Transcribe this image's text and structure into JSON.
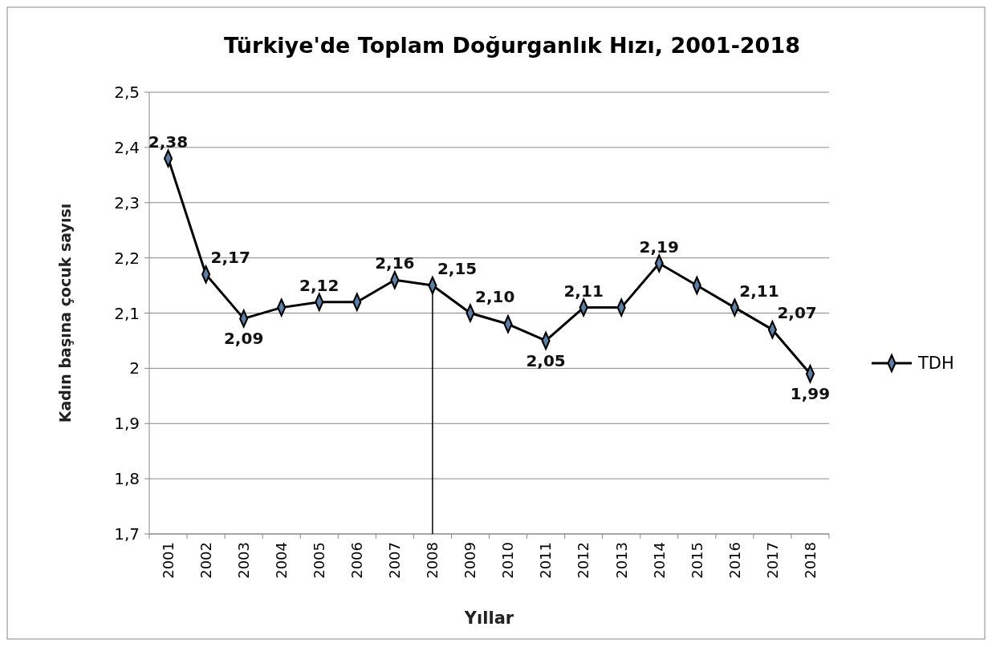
{
  "chart_data": {
    "type": "line",
    "title": "Türkiye'de Toplam Doğurganlık Hızı, 2001-2018",
    "xlabel": "Yıllar",
    "ylabel": "Kadın başına çocuk sayısı",
    "categories": [
      "2001",
      "2002",
      "2003",
      "2004",
      "2005",
      "2006",
      "2007",
      "2008",
      "2009",
      "2010",
      "2011",
      "2012",
      "2013",
      "2014",
      "2015",
      "2016",
      "2017",
      "2018"
    ],
    "series": [
      {
        "name": "TDH",
        "color": "#000000",
        "values": [
          2.38,
          2.17,
          2.09,
          2.11,
          2.12,
          2.12,
          2.16,
          2.15,
          2.1,
          2.08,
          2.05,
          2.11,
          2.11,
          2.19,
          2.15,
          2.11,
          2.07,
          1.99
        ],
        "value_labels": [
          "2,38",
          "2,17",
          "2,09",
          null,
          "2,12",
          null,
          "2,16",
          "2,15",
          "2,10",
          null,
          "2,05",
          "2,11",
          null,
          "2,19",
          null,
          "2,11",
          "2,07",
          "1,99"
        ]
      }
    ],
    "ref_lines": [
      {
        "axis": "x",
        "value": "2008",
        "color": "#000000"
      }
    ],
    "ylim": [
      1.7,
      2.5
    ],
    "yticks": [
      {
        "value": 1.7,
        "label": "1,7"
      },
      {
        "value": 1.8,
        "label": "1,8"
      },
      {
        "value": 1.9,
        "label": "1,9"
      },
      {
        "value": 2,
        "label": "2"
      },
      {
        "value": 2.1,
        "label": "2,1"
      },
      {
        "value": 2.2,
        "label": "2,2"
      },
      {
        "value": 2.3,
        "label": "2,3"
      },
      {
        "value": 2.4,
        "label": "2,4"
      },
      {
        "value": 2.5,
        "label": "2,5"
      }
    ],
    "grid": "y",
    "legend": "right",
    "marker": "diamond",
    "line_style": "solid"
  }
}
